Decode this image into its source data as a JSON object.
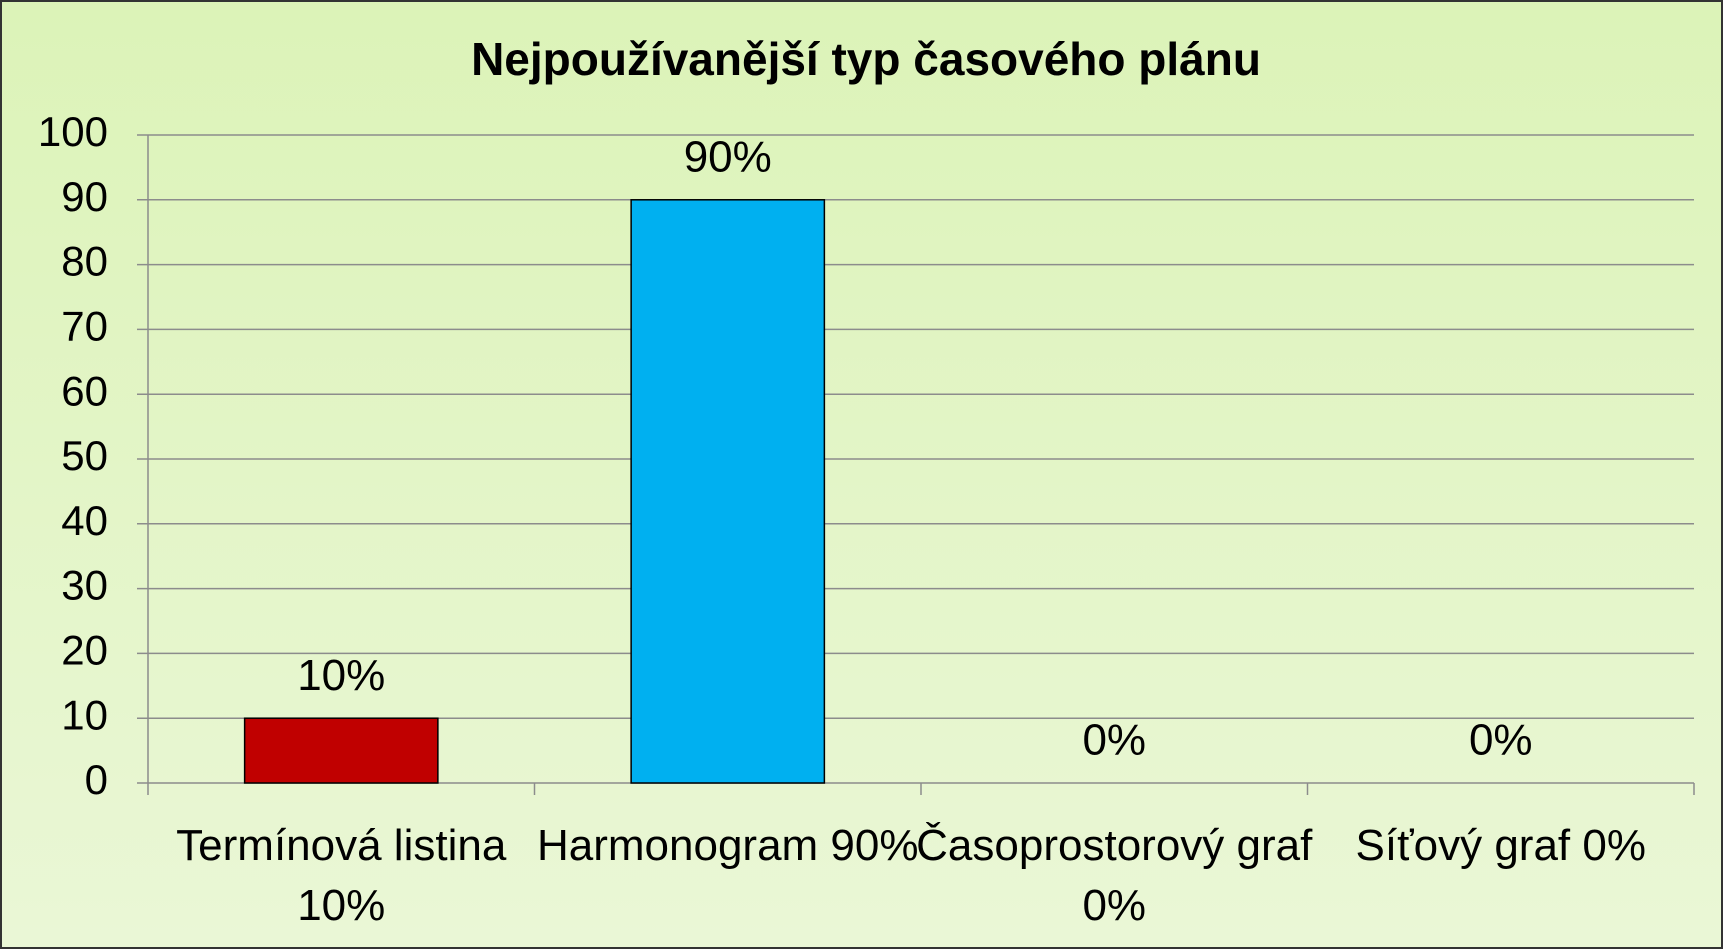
{
  "chart_data": {
    "type": "bar",
    "title": "Nejpoužívanější typ časového plánu",
    "categories": [
      "Termínová listina 10%",
      "Harmonogram 90%",
      "Časoprostorový graf 0%",
      "Síťový graf 0%"
    ],
    "values": [
      10,
      90,
      0,
      0
    ],
    "value_labels": [
      "10%",
      "90%",
      "0%",
      "0%"
    ],
    "colors": [
      "#c00000",
      "#00b0f0",
      "#00b0f0",
      "#00b0f0"
    ],
    "ylim": [
      0,
      100
    ],
    "yticks": [
      0,
      10,
      20,
      30,
      40,
      50,
      60,
      70,
      80,
      90,
      100
    ],
    "grid": true
  }
}
